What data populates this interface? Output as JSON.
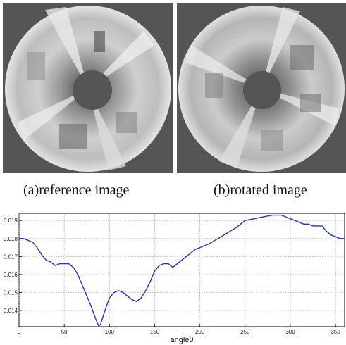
{
  "figure": {
    "caption_a": "(a)reference image",
    "caption_b": "(b)rotated image"
  },
  "colors": {
    "panel_background": "#555555",
    "curve": "#1f33c8",
    "grid": "#9a9a9a"
  },
  "chart_data": {
    "type": "line",
    "xlabel": "angleθ",
    "ylabel": "",
    "xlim": [
      0,
      360
    ],
    "ylim": [
      0.0131,
      0.0194
    ],
    "xticks": [
      0,
      50,
      100,
      150,
      200,
      250,
      300,
      350
    ],
    "yticks": [
      0.014,
      0.015,
      0.016,
      0.017,
      0.018,
      0.019
    ],
    "ytick_labels": [
      "0.014",
      "0.015",
      "0.016",
      "0.017",
      "0.018",
      "0.019"
    ],
    "grid": true,
    "series": [
      {
        "x": [
          0,
          5,
          10,
          15,
          20,
          25,
          30,
          35,
          40,
          45,
          50,
          55,
          60,
          65,
          70,
          75,
          80,
          85,
          88,
          90,
          95,
          100,
          105,
          110,
          115,
          120,
          125,
          130,
          135,
          140,
          145,
          150,
          155,
          160,
          165,
          170,
          175,
          180,
          185,
          190,
          195,
          200,
          210,
          220,
          230,
          240,
          250,
          260,
          270,
          280,
          285,
          290,
          295,
          300,
          305,
          310,
          315,
          320,
          325,
          330,
          335,
          340,
          345,
          350,
          355,
          360
        ],
        "y": [
          0.018,
          0.018,
          0.0179,
          0.0178,
          0.0175,
          0.0171,
          0.0168,
          0.0167,
          0.0165,
          0.0166,
          0.0166,
          0.0166,
          0.0164,
          0.016,
          0.0154,
          0.0148,
          0.0142,
          0.0135,
          0.01315,
          0.0132,
          0.014,
          0.0147,
          0.015,
          0.0151,
          0.015,
          0.0148,
          0.0146,
          0.0145,
          0.0147,
          0.0151,
          0.0156,
          0.0162,
          0.0165,
          0.0166,
          0.0166,
          0.0164,
          0.0166,
          0.0168,
          0.017,
          0.0172,
          0.0174,
          0.0175,
          0.0177,
          0.018,
          0.0183,
          0.0186,
          0.019,
          0.0191,
          0.0192,
          0.0193,
          0.0193,
          0.0193,
          0.0192,
          0.0191,
          0.019,
          0.0189,
          0.0188,
          0.0188,
          0.0187,
          0.0187,
          0.0187,
          0.0184,
          0.0182,
          0.0181,
          0.018,
          0.018
        ]
      }
    ]
  }
}
